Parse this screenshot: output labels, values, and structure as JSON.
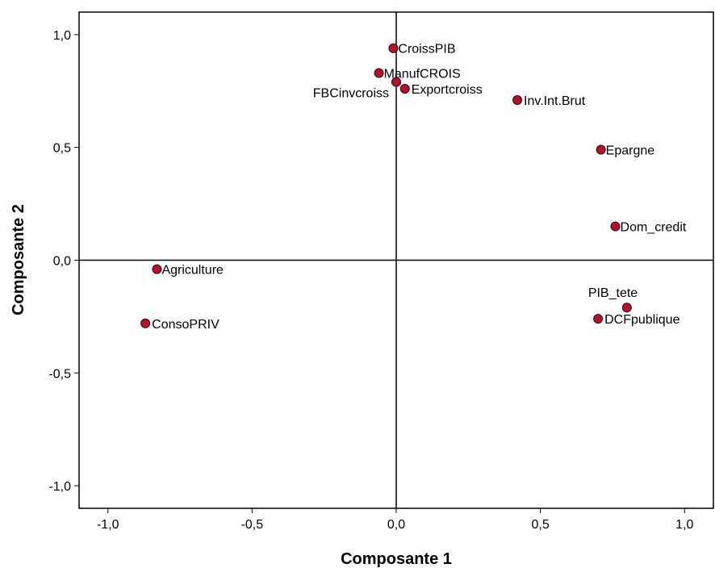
{
  "chart_data": {
    "type": "scatter",
    "xlabel": "Composante 1",
    "ylabel": "Composante 2",
    "xlim": [
      -1.1,
      1.1
    ],
    "ylim": [
      -1.1,
      1.1
    ],
    "xticks": [
      -1.0,
      -0.5,
      0.0,
      0.5,
      1.0
    ],
    "yticks": [
      -1.0,
      -0.5,
      0.0,
      0.5,
      1.0
    ],
    "xtick_labels": [
      "-1,0",
      "-0,5",
      "0,0",
      "0,5",
      "1,0"
    ],
    "ytick_labels": [
      "-1,0",
      "-0,5",
      "0,0",
      "0,5",
      "1,0"
    ],
    "reference_lines": [
      "x=0",
      "y=0"
    ],
    "grid": false,
    "point_color": "#b3122e",
    "points": [
      {
        "label": "CroissPIB",
        "x": -0.01,
        "y": 0.94
      },
      {
        "label": "ManufCROIS",
        "x": -0.06,
        "y": 0.83
      },
      {
        "label": "FBCinvcroiss",
        "x": 0.0,
        "y": 0.79
      },
      {
        "label": "Exportcroiss",
        "x": 0.03,
        "y": 0.76
      },
      {
        "label": "Inv.Int.Brut",
        "x": 0.42,
        "y": 0.71
      },
      {
        "label": "Epargne",
        "x": 0.71,
        "y": 0.49
      },
      {
        "label": "Dom_credit",
        "x": 0.76,
        "y": 0.15
      },
      {
        "label": "Agriculture",
        "x": -0.83,
        "y": -0.04
      },
      {
        "label": "ConsoPRIV",
        "x": -0.87,
        "y": -0.28
      },
      {
        "label": "PIB_tete",
        "x": 0.8,
        "y": -0.21
      },
      {
        "label": "DCFpublique",
        "x": 0.7,
        "y": -0.26
      }
    ]
  }
}
